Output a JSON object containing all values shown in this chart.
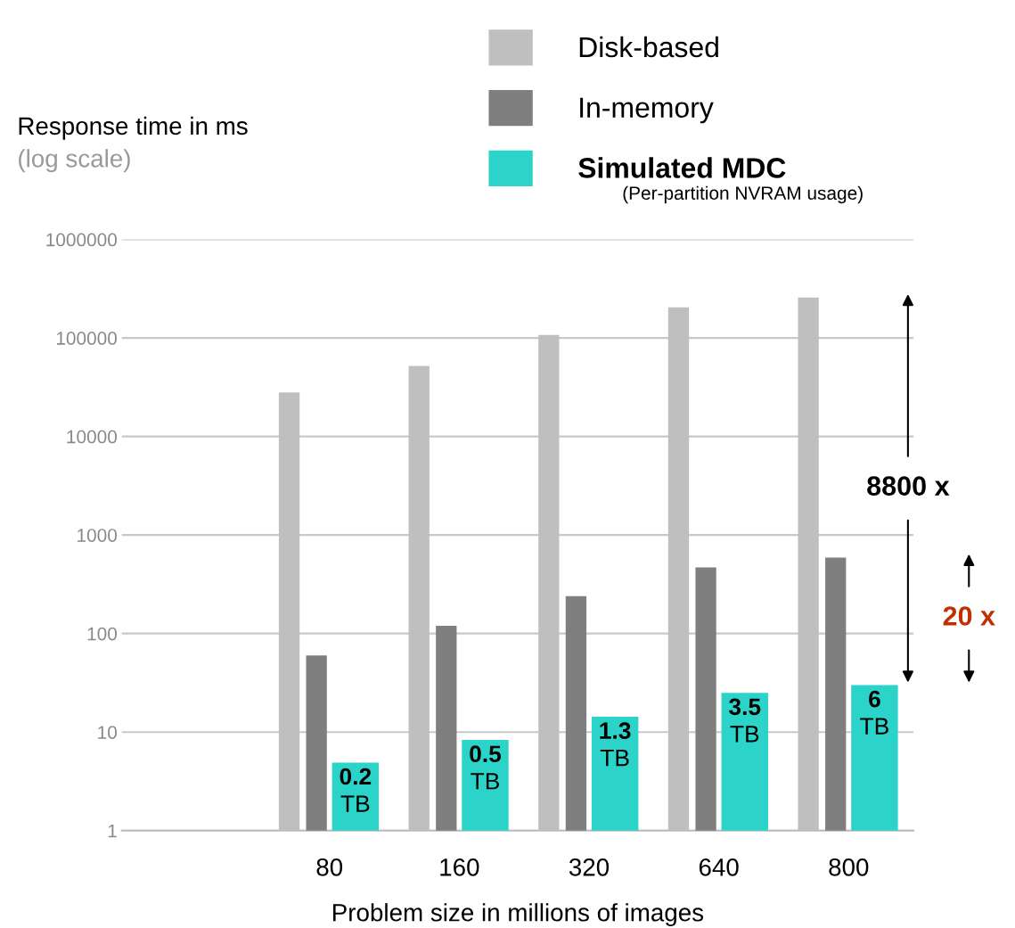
{
  "chart_data": {
    "type": "bar",
    "ylabel": "Response time in ms",
    "xlabel": "Problem size in millions of images",
    "categories": [
      "80",
      "160",
      "320",
      "640",
      "800"
    ],
    "series": [
      {
        "name": "Disk-based",
        "color": "#bfbfbf",
        "values": [
          28000,
          52000,
          107000,
          205000,
          257000
        ]
      },
      {
        "name": "In-memory",
        "color": "#7f7f7f",
        "values": [
          60,
          120,
          240,
          470,
          590
        ]
      },
      {
        "name": "Simulated MDC",
        "color": "#2cd3c9",
        "values": [
          4.9,
          8.3,
          14.3,
          25,
          30
        ]
      }
    ],
    "log": true,
    "ylim": [
      1,
      1000000
    ],
    "yticks": [
      1,
      10,
      100,
      1000,
      10000,
      100000,
      1000000
    ],
    "grid": "y",
    "legend": "top right",
    "annotations": [
      "(log scale)",
      "(Per-partition NVRAM usage)",
      "8800 x",
      "20 x",
      {
        "text": "0.2 TB",
        "x": "80",
        "y": 4.9
      },
      {
        "text": "0.5 TB",
        "x": "160",
        "y": 8.3
      },
      {
        "text": "1.3 TB",
        "x": "320",
        "y": 14.3
      },
      {
        "text": "3.5 TB",
        "x": "640",
        "y": 25
      },
      {
        "text": "6 TB",
        "x": "800",
        "y": 30
      }
    ]
  }
}
